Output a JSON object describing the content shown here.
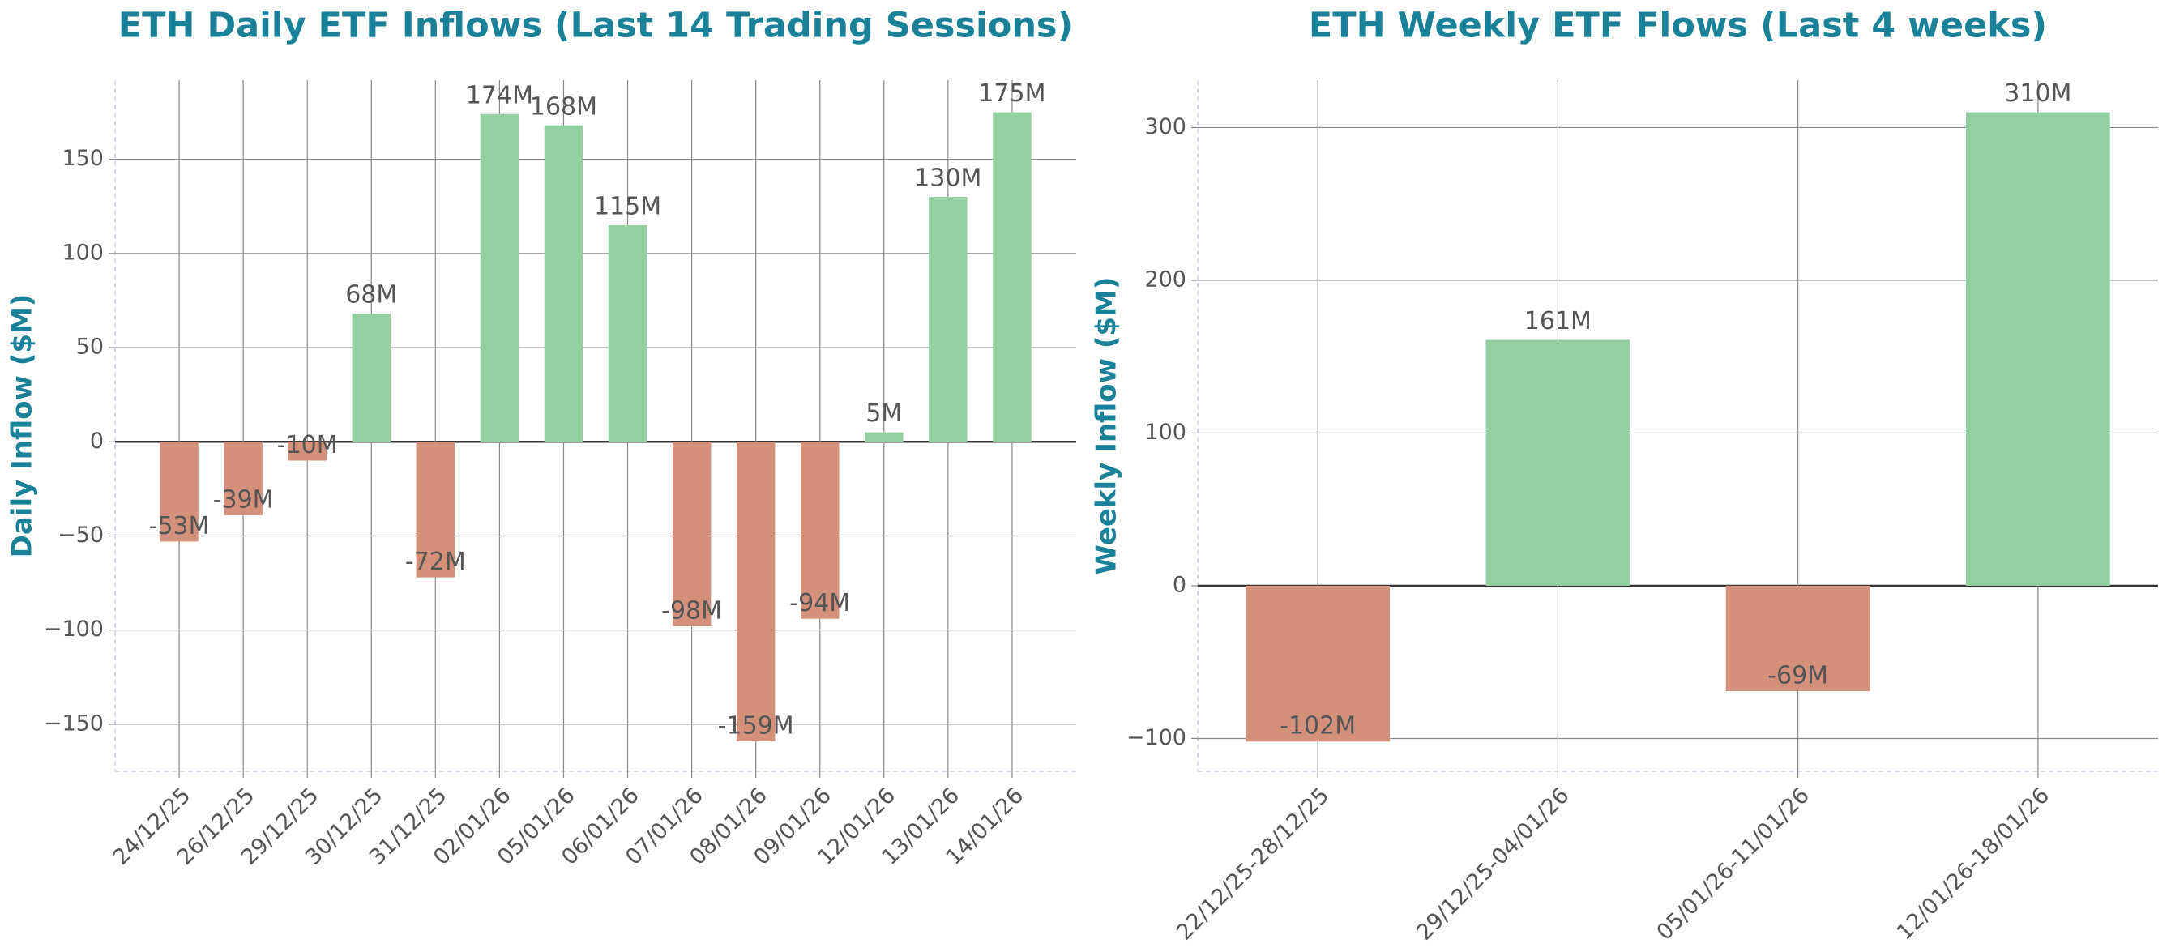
{
  "chart_data": [
    {
      "type": "bar",
      "title": "ETH Daily ETF Inflows (Last 14 Trading Sessions)",
      "y_label": "Daily Inflow ($M)",
      "categories": [
        "24/12/25",
        "26/12/25",
        "29/12/25",
        "30/12/25",
        "31/12/25",
        "02/01/26",
        "05/01/26",
        "06/01/26",
        "07/01/26",
        "08/01/26",
        "09/01/26",
        "12/01/26",
        "13/01/26",
        "14/01/26"
      ],
      "values": [
        -53,
        -39,
        -10,
        68,
        -72,
        174,
        168,
        115,
        -98,
        -159,
        -94,
        5,
        130,
        175
      ],
      "value_labels": [
        "-53M",
        "-39M",
        "-10M",
        "68M",
        "-72M",
        "174M",
        "168M",
        "115M",
        "-98M",
        "-159M",
        "-94M",
        "5M",
        "130M",
        "175M"
      ],
      "positive_color": "#93cfa0",
      "negative_color": "#d4907b",
      "ylim": [
        -175,
        192
      ],
      "yticks": [
        {
          "value": -150,
          "label": "−150"
        },
        {
          "value": -100,
          "label": "−100"
        },
        {
          "value": -50,
          "label": "−50"
        },
        0,
        50,
        100,
        150
      ],
      "grid": true
    },
    {
      "type": "bar",
      "title": "ETH Weekly ETF Flows (Last 4 weeks)",
      "y_label": "Weekly Inflow ($M)",
      "categories": [
        "22/12/25-28/12/25",
        "29/12/25-04/01/26",
        "05/01/26-11/01/26",
        "12/01/26-18/01/26"
      ],
      "values": [
        -102,
        161,
        -69,
        310
      ],
      "value_labels": [
        "-102M",
        "161M",
        "-69M",
        "310M"
      ],
      "positive_color": "#93cfa0",
      "negative_color": "#d4907b",
      "ylim": [
        -121.5,
        331
      ],
      "yticks": [
        {
          "value": -100,
          "label": "−100"
        },
        0,
        100,
        200,
        300
      ],
      "grid": true
    }
  ]
}
